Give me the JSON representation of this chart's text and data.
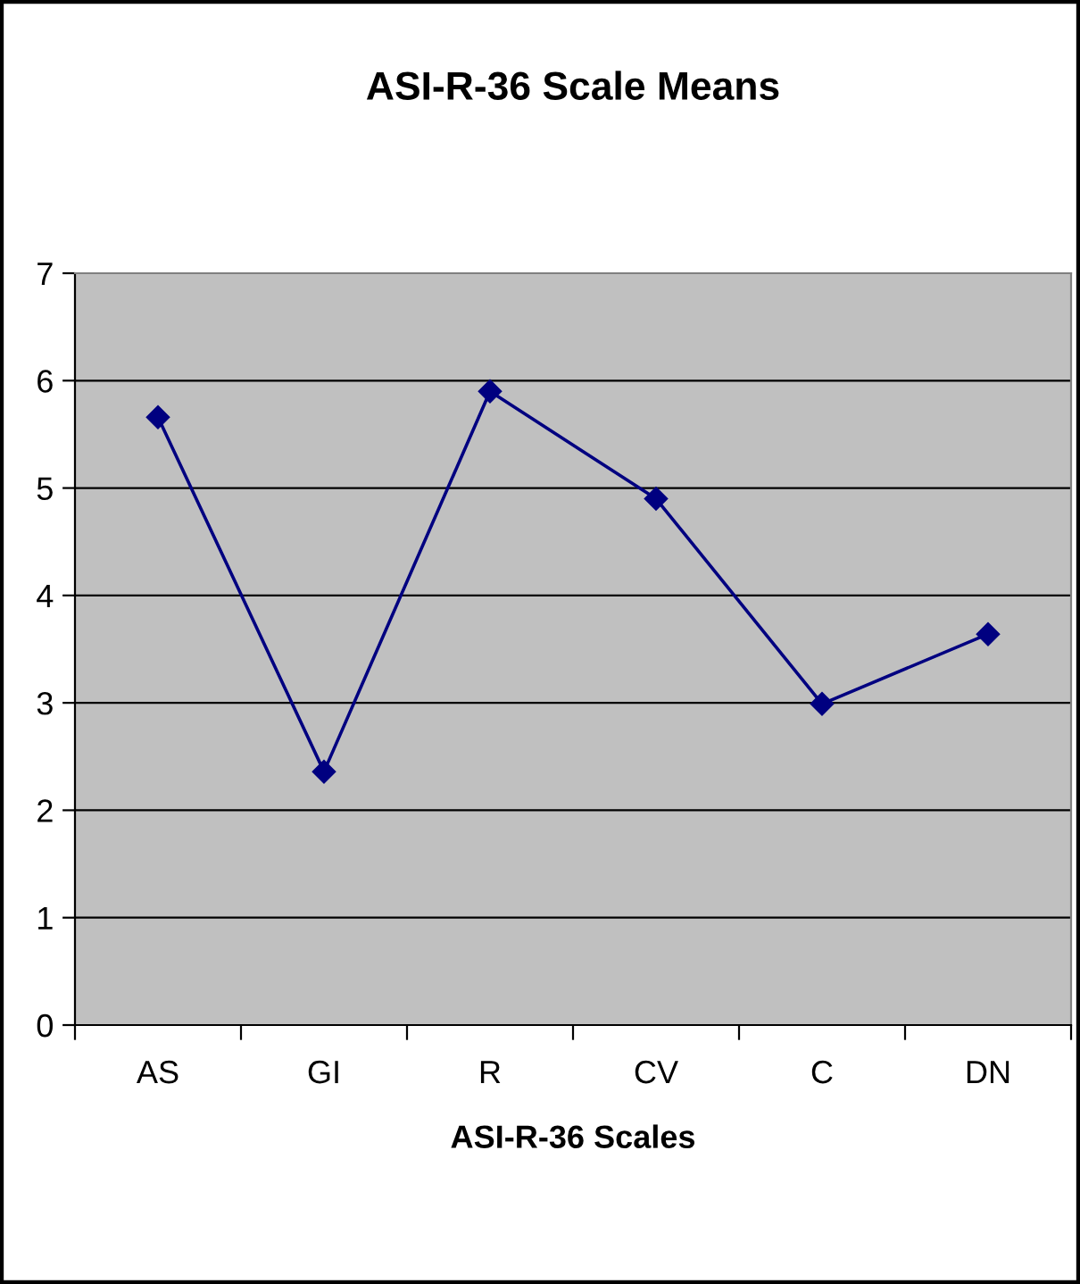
{
  "chart_data": {
    "type": "line",
    "title": "ASI-R-36 Scale Means",
    "xlabel": "ASI-R-36 Scales",
    "categories": [
      "AS",
      "GI",
      "R",
      "CV",
      "C",
      "DN"
    ],
    "series": [
      {
        "color": "#000080",
        "values": [
          5.66,
          2.36,
          5.9,
          4.9,
          2.99,
          3.64
        ]
      }
    ],
    "ylim": [
      0,
      7
    ],
    "yticks": [
      0,
      1,
      2,
      3,
      4,
      5,
      6,
      7
    ],
    "grid": "y",
    "marker": "diamond",
    "line_style": "solid",
    "legend": false
  }
}
